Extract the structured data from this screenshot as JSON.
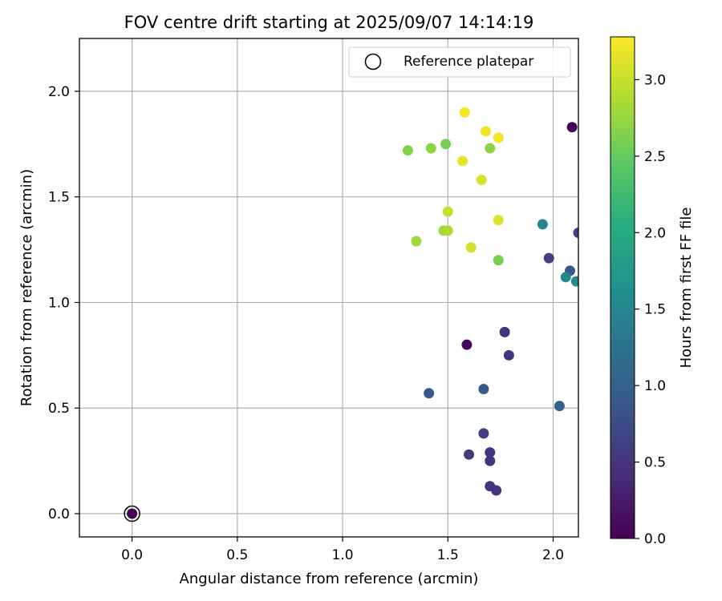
{
  "chart_data": {
    "type": "scatter",
    "title": "FOV centre drift starting at 2025/09/07 14:14:19",
    "xlabel": "Angular distance from reference (arcmin)",
    "ylabel": "Rotation from reference (arcmin)",
    "xlim": [
      -0.25,
      2.12
    ],
    "ylim": [
      -0.11,
      2.25
    ],
    "xticks": [
      "0.0",
      "0.5",
      "1.0",
      "1.5",
      "2.0"
    ],
    "yticks": [
      "0.0",
      "0.5",
      "1.0",
      "1.5",
      "2.0"
    ],
    "grid": true,
    "legend_position": "top-right",
    "legend": {
      "label": "Reference platepar",
      "marker": "open-circle"
    },
    "colorbar": {
      "label": "Hours from first FF file",
      "colormap": "viridis",
      "range": [
        0.0,
        3.28
      ],
      "ticks": [
        "0.0",
        "0.5",
        "1.0",
        "1.5",
        "2.0",
        "2.5",
        "3.0"
      ]
    },
    "reference_point": {
      "x": 0.0,
      "y": 0.0,
      "hours": 0.0
    },
    "points": [
      {
        "x": 2.09,
        "y": 1.83,
        "hours": 0.02
      },
      {
        "x": 1.59,
        "y": 0.8,
        "hours": 0.05
      },
      {
        "x": 1.77,
        "y": 0.86,
        "hours": 0.45
      },
      {
        "x": 1.79,
        "y": 0.75,
        "hours": 0.5
      },
      {
        "x": 1.6,
        "y": 0.28,
        "hours": 0.55
      },
      {
        "x": 1.7,
        "y": 0.29,
        "hours": 0.5
      },
      {
        "x": 1.7,
        "y": 0.25,
        "hours": 0.5
      },
      {
        "x": 1.7,
        "y": 0.13,
        "hours": 0.5
      },
      {
        "x": 1.73,
        "y": 0.11,
        "hours": 0.48
      },
      {
        "x": 1.67,
        "y": 0.38,
        "hours": 0.6
      },
      {
        "x": 1.98,
        "y": 1.21,
        "hours": 0.6
      },
      {
        "x": 2.12,
        "y": 1.33,
        "hours": 0.65
      },
      {
        "x": 1.41,
        "y": 0.57,
        "hours": 0.9
      },
      {
        "x": 1.67,
        "y": 0.59,
        "hours": 0.95
      },
      {
        "x": 2.03,
        "y": 0.51,
        "hours": 1.0
      },
      {
        "x": 2.08,
        "y": 1.15,
        "hours": 0.9
      },
      {
        "x": 1.95,
        "y": 1.37,
        "hours": 1.5
      },
      {
        "x": 2.06,
        "y": 1.12,
        "hours": 1.55
      },
      {
        "x": 2.11,
        "y": 1.1,
        "hours": 1.6
      },
      {
        "x": 1.31,
        "y": 1.72,
        "hours": 2.65
      },
      {
        "x": 1.42,
        "y": 1.73,
        "hours": 2.7
      },
      {
        "x": 1.49,
        "y": 1.75,
        "hours": 2.6
      },
      {
        "x": 1.7,
        "y": 1.73,
        "hours": 2.7
      },
      {
        "x": 1.74,
        "y": 1.2,
        "hours": 2.6
      },
      {
        "x": 1.35,
        "y": 1.29,
        "hours": 2.8
      },
      {
        "x": 1.48,
        "y": 1.34,
        "hours": 2.8
      },
      {
        "x": 1.5,
        "y": 1.34,
        "hours": 2.85
      },
      {
        "x": 1.5,
        "y": 1.43,
        "hours": 3.0
      },
      {
        "x": 1.61,
        "y": 1.26,
        "hours": 3.05
      },
      {
        "x": 1.74,
        "y": 1.39,
        "hours": 3.1
      },
      {
        "x": 1.66,
        "y": 1.58,
        "hours": 3.1
      },
      {
        "x": 1.57,
        "y": 1.67,
        "hours": 3.15
      },
      {
        "x": 1.58,
        "y": 1.9,
        "hours": 3.25
      },
      {
        "x": 1.68,
        "y": 1.81,
        "hours": 3.22
      },
      {
        "x": 1.74,
        "y": 1.78,
        "hours": 3.25
      }
    ]
  }
}
